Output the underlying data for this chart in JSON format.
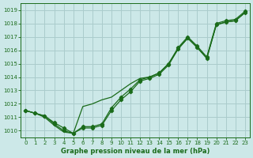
{
  "bg_color": "#cce8e8",
  "grid_color": "#aacccc",
  "line_color": "#1a6b1a",
  "marker_color": "#1a6b1a",
  "xlabel": "Graphe pression niveau de la mer (hPa)",
  "xlim": [
    -0.5,
    23.5
  ],
  "ylim": [
    1009.5,
    1019.5
  ],
  "yticks": [
    1010,
    1011,
    1012,
    1013,
    1014,
    1015,
    1016,
    1017,
    1018,
    1019
  ],
  "xticks": [
    0,
    1,
    2,
    3,
    4,
    5,
    6,
    7,
    8,
    9,
    10,
    11,
    12,
    13,
    14,
    15,
    16,
    17,
    18,
    19,
    20,
    21,
    22,
    23
  ],
  "s1_x": [
    0,
    1,
    2,
    3,
    4,
    5,
    6,
    7,
    8,
    9,
    10,
    11,
    12,
    13,
    14,
    15,
    16,
    17,
    18,
    19,
    20,
    21,
    22,
    23
  ],
  "s1_y": [
    1011.5,
    1011.3,
    1011.1,
    1010.6,
    1010.2,
    1009.8,
    1010.3,
    1010.3,
    1010.5,
    1011.7,
    1012.5,
    1013.1,
    1013.8,
    1014.0,
    1014.3,
    1015.0,
    1016.2,
    1017.0,
    1016.3,
    1015.5,
    1018.0,
    1018.2,
    1018.3,
    1018.9
  ],
  "s2_x": [
    0,
    1,
    2,
    3,
    4,
    5,
    6,
    7,
    8,
    9,
    10,
    11,
    12,
    13,
    14,
    15,
    16,
    17,
    18,
    19,
    20,
    21,
    22,
    23
  ],
  "s2_y": [
    1011.5,
    1011.3,
    1011.1,
    1010.5,
    1010.0,
    1009.8,
    1010.2,
    1010.2,
    1010.4,
    1011.5,
    1012.3,
    1012.9,
    1013.7,
    1013.9,
    1014.2,
    1014.9,
    1016.1,
    1016.9,
    1016.2,
    1015.4,
    1017.9,
    1018.1,
    1018.2,
    1018.8
  ],
  "s3_x": [
    0,
    1,
    2,
    3,
    4,
    5,
    6,
    7,
    8,
    9,
    10,
    11,
    12,
    13,
    14,
    15,
    16,
    17,
    18,
    19,
    20,
    21,
    22,
    23
  ],
  "s3_y": [
    1011.5,
    1011.3,
    1011.0,
    1010.4,
    1009.9,
    1009.8,
    1011.8,
    1012.0,
    1012.3,
    1012.5,
    1013.0,
    1013.5,
    1013.9,
    1014.0,
    1014.3,
    1015.0,
    1016.1,
    1016.9,
    1016.2,
    1015.4,
    1017.9,
    1018.1,
    1018.2,
    1018.8
  ]
}
